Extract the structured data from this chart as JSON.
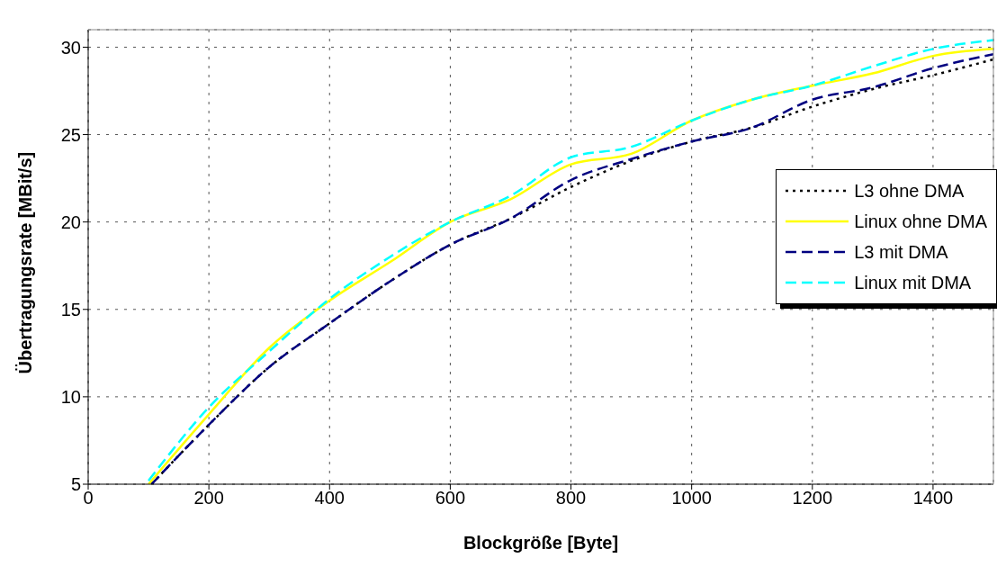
{
  "chart_data": {
    "type": "line",
    "xlabel": "Blockgröße [Byte]",
    "ylabel": "Übertragungsrate [MBit/s]",
    "xlim": [
      0,
      1500
    ],
    "xticks": [
      0,
      200,
      400,
      600,
      800,
      1000,
      1200,
      1400
    ],
    "ylim": [
      5,
      31
    ],
    "yticks": [
      5,
      10,
      15,
      20,
      25,
      30
    ],
    "grid": true,
    "legend": "right",
    "marker": "none",
    "series": [
      {
        "name": "L3 ohne DMA",
        "color": "#000000",
        "line_style": "dotted",
        "x": [
          105,
          200,
          300,
          400,
          500,
          600,
          700,
          800,
          900,
          1000,
          1100,
          1200,
          1300,
          1400,
          1500
        ],
        "values": [
          5.0,
          8.4,
          11.7,
          14.2,
          16.6,
          18.7,
          20.2,
          22.0,
          23.5,
          24.6,
          25.4,
          26.6,
          27.6,
          28.4,
          29.3
        ]
      },
      {
        "name": "Linux ohne DMA",
        "color": "#ffff00",
        "line_style": "solid",
        "x": [
          100,
          200,
          300,
          400,
          500,
          600,
          700,
          800,
          900,
          1000,
          1100,
          1200,
          1300,
          1400,
          1500
        ],
        "values": [
          5.0,
          9.0,
          12.8,
          15.5,
          17.7,
          20.0,
          21.3,
          23.3,
          23.9,
          25.8,
          27.0,
          27.8,
          28.5,
          29.5,
          29.9
        ]
      },
      {
        "name": "L3 mit DMA",
        "color": "#000080",
        "line_style": "dashed",
        "x": [
          105,
          200,
          300,
          400,
          500,
          600,
          700,
          800,
          900,
          1000,
          1100,
          1200,
          1300,
          1400,
          1500
        ],
        "values": [
          5.0,
          8.4,
          11.7,
          14.2,
          16.6,
          18.7,
          20.2,
          22.4,
          23.6,
          24.6,
          25.4,
          27.0,
          27.7,
          28.8,
          29.6
        ]
      },
      {
        "name": "Linux mit DMA",
        "color": "#00ffff",
        "line_style": "dashed",
        "x": [
          100,
          200,
          300,
          400,
          500,
          600,
          700,
          800,
          900,
          1000,
          1100,
          1200,
          1300,
          1400,
          1500
        ],
        "values": [
          5.2,
          9.4,
          12.6,
          15.6,
          18.0,
          20.0,
          21.5,
          23.7,
          24.3,
          25.8,
          27.0,
          27.8,
          28.9,
          29.9,
          30.4
        ]
      }
    ]
  }
}
